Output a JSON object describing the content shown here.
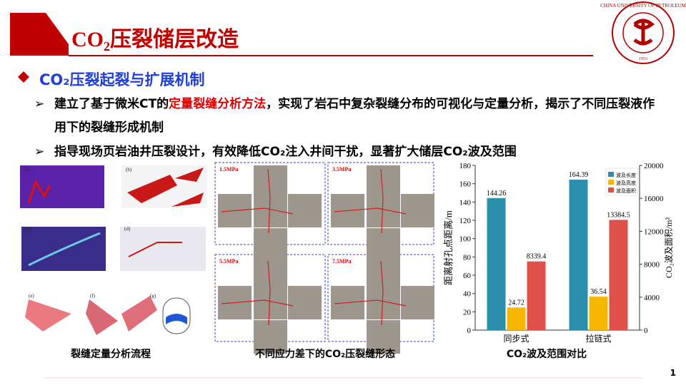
{
  "header": {
    "title": "CO₂压裂储层改造",
    "logo_text": "CHINA UNIVERSITY OF PETROLEUM",
    "logo_year": "1953"
  },
  "section": "CO₂压裂起裂与扩展机制",
  "bullets": [
    {
      "parts": [
        "建立了基于微米CT的",
        "定量裂缝分析方法",
        "，实现了岩石中复杂裂缝分布的可视化与定量分析，揭示了不同压裂液作用下的裂缝形成机制"
      ]
    },
    {
      "parts": [
        "指导现场页岩油井压裂设计，有效降低CO₂注入井间干扰，显著扩大储层CO₂波及范围"
      ]
    }
  ],
  "figures": {
    "ct_panels": [
      "(a)",
      "(b)",
      "(c)",
      "(d)",
      "(e)",
      "(f)",
      "(g)"
    ],
    "ct_caption": "裂缝定量分析流程",
    "stress_panels": [
      "1.5MPa",
      "3.5MPa",
      "5.5MPa",
      "7.5MPa"
    ],
    "stress_caption": "不同应力差下的CO₂压裂缝形态"
  },
  "chart_data": {
    "type": "bar",
    "caption": "CO₂波及范围对比",
    "y_label": "距离射孔点距离/m",
    "y2_label": "CO₂波及面积/m²",
    "categories": [
      "同步式",
      "拉链式"
    ],
    "series": [
      {
        "name": "波及长度",
        "color": "#2a8fab",
        "values": [
          144.26,
          164.39
        ]
      },
      {
        "name": "波及高度",
        "color": "#f5b700",
        "values": [
          24.72,
          36.54
        ]
      },
      {
        "name": "波及面积",
        "color": "#e0504a",
        "axis": "y2",
        "values": [
          8339.4,
          13384.5
        ]
      }
    ],
    "ylim": [
      0,
      180
    ],
    "yticks": [
      0,
      20,
      40,
      60,
      80,
      100,
      120,
      140,
      160,
      180
    ],
    "y2lim": [
      0,
      20000
    ],
    "y2ticks": [
      0,
      4000,
      8000,
      12000,
      16000,
      20000
    ],
    "legend": "upper right"
  },
  "page_number": "1"
}
